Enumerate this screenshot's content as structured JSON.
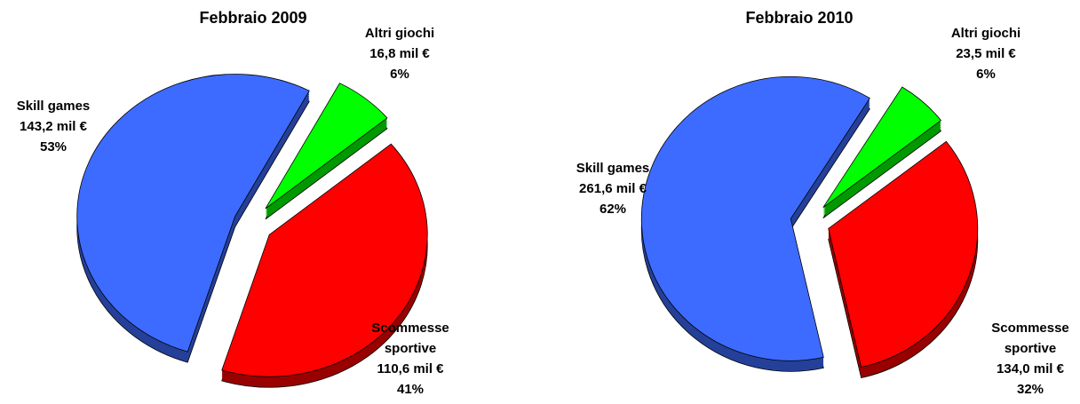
{
  "chart_data": [
    {
      "type": "pie",
      "title": "Febbraio 2009",
      "categories": [
        "Altri giochi",
        "Scommesse sportive",
        "Skill games"
      ],
      "values": [
        16.8,
        110.6,
        143.2
      ],
      "value_labels": [
        "16,8 mil €",
        "110,6 mil €",
        "143,2 mil €"
      ],
      "percents": [
        6,
        41,
        53
      ],
      "percent_labels": [
        "6%",
        "41%",
        "53%"
      ],
      "colors": [
        "#00ff00",
        "#ff0000",
        "#3d6bff"
      ]
    },
    {
      "type": "pie",
      "title": "Febbraio 2010",
      "categories": [
        "Altri giochi",
        "Scommesse sportive",
        "Skill games"
      ],
      "values": [
        23.5,
        134.0,
        261.6
      ],
      "value_labels": [
        "23,5 mil €",
        "134,0 mil €",
        "261,6 mil €"
      ],
      "percents": [
        6,
        32,
        62
      ],
      "percent_labels": [
        "6%",
        "32%",
        "62%"
      ],
      "colors": [
        "#00ff00",
        "#ff0000",
        "#3d6bff"
      ]
    }
  ]
}
